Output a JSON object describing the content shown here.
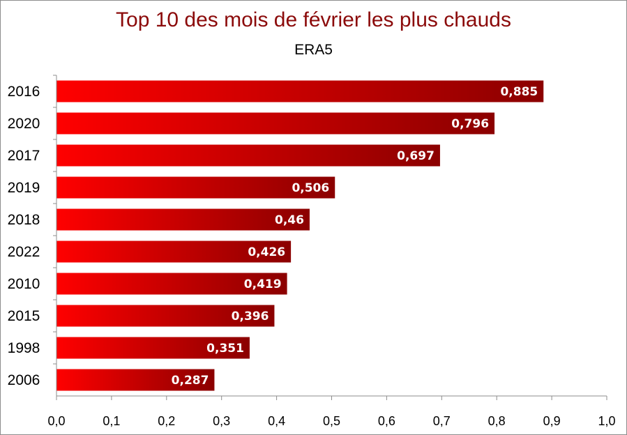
{
  "chart_data": {
    "type": "bar",
    "orientation": "horizontal",
    "title": "Top 10 des mois de février les plus chauds",
    "subtitle": "ERA5",
    "categories": [
      "2016",
      "2020",
      "2017",
      "2019",
      "2018",
      "2022",
      "2010",
      "2015",
      "1998",
      "2006"
    ],
    "values": [
      0.885,
      0.796,
      0.697,
      0.506,
      0.46,
      0.426,
      0.419,
      0.396,
      0.351,
      0.287
    ],
    "data_labels": [
      "0,885",
      "0,796",
      "0,697",
      "0,506",
      "0,46",
      "0,426",
      "0,419",
      "0,396",
      "0,351",
      "0,287"
    ],
    "xlim": [
      0,
      1.0
    ],
    "x_ticks": [
      "0,0",
      "0,1",
      "0,2",
      "0,3",
      "0,4",
      "0,5",
      "0,6",
      "0,7",
      "0,8",
      "0,9",
      "1,0"
    ],
    "xlabel": "",
    "ylabel": "",
    "grid": false,
    "legend": "none",
    "colors": {
      "bar_start": "#ff0000",
      "bar_end": "#8b0000",
      "title": "#8b0a0a",
      "axis": "#8c8c8c"
    }
  }
}
